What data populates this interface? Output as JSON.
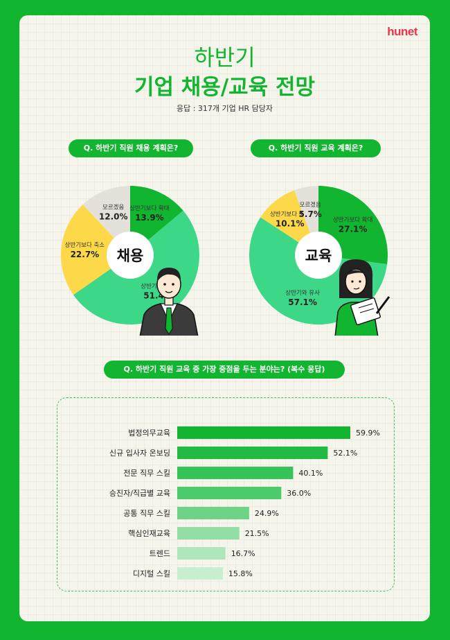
{
  "brand": "hunet",
  "header": {
    "title_line1": "하반기",
    "title_line2": "기업 채용/교육 전망",
    "subtitle": "응답 : 317개 기업 HR 담당자"
  },
  "colors": {
    "brand_green": "#12b530",
    "light_green": "#3dd788",
    "yellow": "#fdd94a",
    "gray": "#e4e1da",
    "brand_red": "#e8344a"
  },
  "chart_data": [
    {
      "type": "pie",
      "title": "Q. 하반기 직원 채용 계획은?",
      "center_label": "채용",
      "slices": [
        {
          "label": "상반기보다 확대",
          "value": 13.9,
          "display": "13.9%",
          "color": "#12b530"
        },
        {
          "label": "상반기와 유사",
          "value": 51.4,
          "display": "51.4%",
          "color": "#3dd788"
        },
        {
          "label": "상반기보다 축소",
          "value": 22.7,
          "display": "22.7%",
          "color": "#fdd94a"
        },
        {
          "label": "모르겠음",
          "value": 12.0,
          "display": "12.0%",
          "color": "#e4e1da"
        }
      ]
    },
    {
      "type": "pie",
      "title": "Q. 하반기 직원 교육 계획은?",
      "center_label": "교육",
      "slices": [
        {
          "label": "상반기보다 확대",
          "value": 27.1,
          "display": "27.1%",
          "color": "#12b530"
        },
        {
          "label": "상반기와 유사",
          "value": 57.1,
          "display": "57.1%",
          "color": "#3dd788"
        },
        {
          "label": "상반기보다 축소",
          "value": 10.1,
          "display": "10.1%",
          "color": "#fdd94a"
        },
        {
          "label": "모르겠음",
          "value": 5.7,
          "display": "5.7%",
          "color": "#e4e1da"
        }
      ]
    },
    {
      "type": "bar",
      "orientation": "horizontal",
      "title": "Q. 하반기 직원 교육 중 가장 중점을 두는 분야는? (복수 응답)",
      "categories": [
        "법정의무교육",
        "신규 입사자 온보딩",
        "전문 직무 스킬",
        "승진자/직급별 교육",
        "공통 직무 스킬",
        "핵심인재교육",
        "트렌드",
        "디지털 스킬"
      ],
      "values": [
        59.9,
        52.1,
        40.1,
        36.0,
        24.9,
        21.5,
        16.7,
        15.8
      ],
      "value_labels": [
        "59.9%",
        "52.1%",
        "40.1%",
        "36.0%",
        "24.9%",
        "21.5%",
        "16.7%",
        "15.8%"
      ],
      "bar_colors": [
        "#12b530",
        "#21bb43",
        "#36c458",
        "#4ccb6d",
        "#6dd487",
        "#91dda3",
        "#aee7bc",
        "#c6eecf"
      ]
    }
  ]
}
